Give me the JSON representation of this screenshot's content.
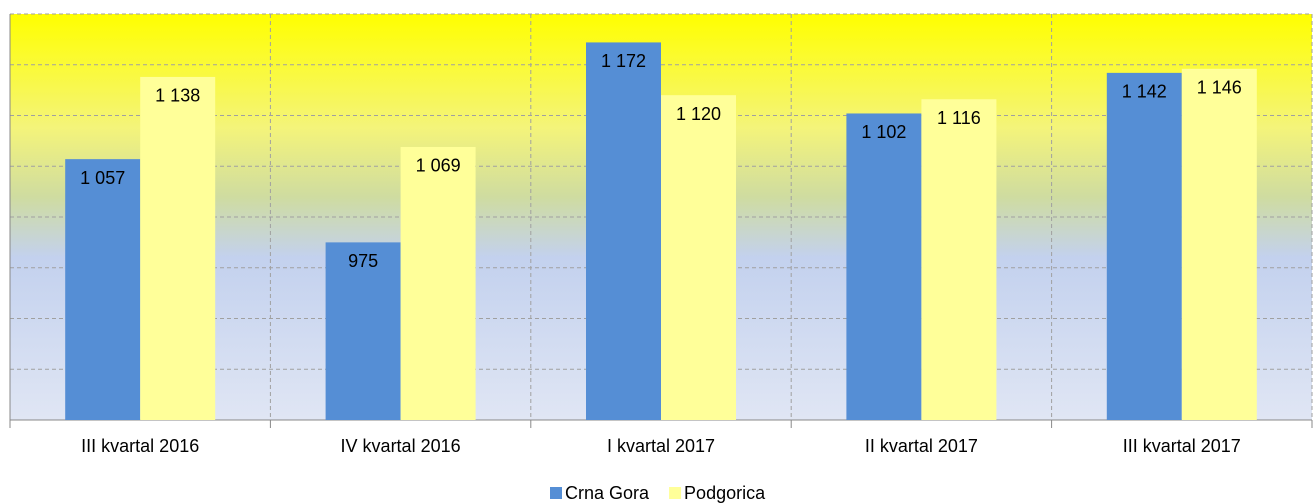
{
  "chart_data": {
    "type": "bar",
    "categories": [
      "III kvartal 2016",
      "IV kvartal 2016",
      "I kvartal 2017",
      "II kvartal 2017",
      "III kvartal 2017"
    ],
    "series": [
      {
        "name": "Crna Gora",
        "color": "#558ed5",
        "values": [
          1057,
          975,
          1172,
          1102,
          1142
        ],
        "value_labels": [
          "1 057",
          "975",
          "1 172",
          "1 102",
          "1 142"
        ]
      },
      {
        "name": "Podgorica",
        "color": "#ffff99",
        "values": [
          1138,
          1069,
          1120,
          1116,
          1146
        ],
        "value_labels": [
          "1 138",
          "1 069",
          "1 120",
          "1 116",
          "1 146"
        ]
      }
    ],
    "ylim": [
      800,
      1200
    ],
    "yticks": [
      800,
      850,
      900,
      950,
      1000,
      1050,
      1100,
      1150,
      1200
    ],
    "grid": true
  }
}
